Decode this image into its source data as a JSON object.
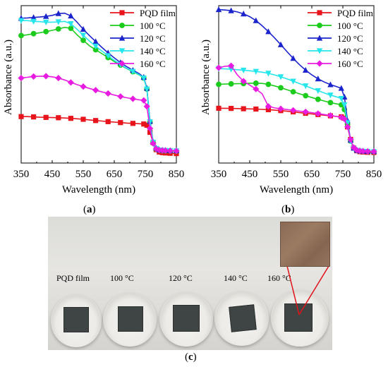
{
  "chart_data": [
    {
      "type": "line",
      "panel": "(a)",
      "xlabel": "Wavelength (nm)",
      "ylabel": "Absorbance (a.u.)",
      "xlim": [
        350,
        850
      ],
      "xticks": [
        "350",
        "450",
        "550",
        "650",
        "750",
        "850"
      ],
      "ylim": [
        0,
        1
      ],
      "legend_position": "top-right",
      "x": [
        350,
        370,
        390,
        410,
        430,
        450,
        470,
        490,
        510,
        530,
        550,
        570,
        590,
        610,
        630,
        650,
        670,
        690,
        710,
        730,
        745,
        755,
        765,
        775,
        785,
        795,
        805,
        815,
        830,
        850
      ],
      "series": [
        {
          "name": "PQD film",
          "color": "#e8141c",
          "marker": "square",
          "values": [
            0.295,
            0.295,
            0.293,
            0.291,
            0.29,
            0.289,
            0.288,
            0.286,
            0.284,
            0.281,
            0.278,
            0.274,
            0.27,
            0.267,
            0.263,
            0.26,
            0.257,
            0.254,
            0.252,
            0.25,
            0.248,
            0.24,
            0.195,
            0.13,
            0.085,
            0.07,
            0.066,
            0.064,
            0.062,
            0.06
          ]
        },
        {
          "name": "100 °C",
          "color": "#1ccc1c",
          "marker": "circle",
          "values": [
            0.81,
            0.815,
            0.822,
            0.828,
            0.835,
            0.843,
            0.852,
            0.862,
            0.856,
            0.815,
            0.78,
            0.745,
            0.72,
            0.695,
            0.67,
            0.645,
            0.622,
            0.6,
            0.58,
            0.56,
            0.54,
            0.47,
            0.26,
            0.13,
            0.09,
            0.08,
            0.078,
            0.077,
            0.076,
            0.075
          ]
        },
        {
          "name": "120 °C",
          "color": "#1c24cc",
          "marker": "triangle",
          "values": [
            0.92,
            0.922,
            0.925,
            0.928,
            0.932,
            0.938,
            0.95,
            0.952,
            0.935,
            0.895,
            0.85,
            0.81,
            0.772,
            0.735,
            0.7,
            0.668,
            0.638,
            0.612,
            0.59,
            0.568,
            0.545,
            0.475,
            0.265,
            0.135,
            0.095,
            0.084,
            0.082,
            0.081,
            0.08,
            0.079
          ]
        },
        {
          "name": "140 °C",
          "color": "#26e6ec",
          "marker": "triangle-down",
          "values": [
            0.905,
            0.905,
            0.9,
            0.898,
            0.895,
            0.895,
            0.897,
            0.9,
            0.885,
            0.85,
            0.812,
            0.775,
            0.742,
            0.712,
            0.682,
            0.652,
            0.626,
            0.602,
            0.582,
            0.562,
            0.54,
            0.47,
            0.262,
            0.132,
            0.092,
            0.082,
            0.08,
            0.079,
            0.078,
            0.077
          ]
        },
        {
          "name": "160 °C",
          "color": "#e81ce0",
          "marker": "diamond",
          "values": [
            0.54,
            0.545,
            0.55,
            0.551,
            0.552,
            0.548,
            0.54,
            0.528,
            0.512,
            0.498,
            0.486,
            0.474,
            0.463,
            0.452,
            0.442,
            0.432,
            0.423,
            0.415,
            0.408,
            0.402,
            0.398,
            0.36,
            0.22,
            0.125,
            0.09,
            0.082,
            0.08,
            0.079,
            0.078,
            0.077
          ]
        }
      ]
    },
    {
      "type": "line",
      "panel": "(b)",
      "xlabel": "Wavelength (nm)",
      "ylabel": "Absorbance (a.u.)",
      "xlim": [
        350,
        850
      ],
      "xticks": [
        "350",
        "450",
        "550",
        "650",
        "750",
        "850"
      ],
      "ylim": [
        0,
        1
      ],
      "legend_position": "top-right",
      "x": [
        350,
        370,
        390,
        410,
        430,
        450,
        470,
        490,
        510,
        530,
        550,
        570,
        590,
        610,
        630,
        650,
        670,
        690,
        710,
        730,
        745,
        755,
        765,
        775,
        785,
        795,
        805,
        815,
        830,
        850
      ],
      "series": [
        {
          "name": "PQD film",
          "color": "#e8141c",
          "marker": "square",
          "values": [
            0.348,
            0.348,
            0.347,
            0.346,
            0.345,
            0.344,
            0.343,
            0.341,
            0.339,
            0.336,
            0.333,
            0.329,
            0.325,
            0.32,
            0.316,
            0.312,
            0.308,
            0.304,
            0.3,
            0.296,
            0.294,
            0.285,
            0.23,
            0.15,
            0.095,
            0.078,
            0.072,
            0.07,
            0.068,
            0.067
          ]
        },
        {
          "name": "100 °C",
          "color": "#1ccc1c",
          "marker": "circle",
          "values": [
            0.5,
            0.502,
            0.503,
            0.504,
            0.505,
            0.507,
            0.507,
            0.506,
            0.5,
            0.49,
            0.478,
            0.466,
            0.453,
            0.44,
            0.428,
            0.416,
            0.405,
            0.394,
            0.384,
            0.376,
            0.37,
            0.34,
            0.245,
            0.14,
            0.095,
            0.08,
            0.076,
            0.074,
            0.073,
            0.072
          ]
        },
        {
          "name": "120 °C",
          "color": "#1c24cc",
          "marker": "triangle",
          "values": [
            0.975,
            0.972,
            0.968,
            0.96,
            0.948,
            0.93,
            0.905,
            0.872,
            0.835,
            0.795,
            0.752,
            0.708,
            0.665,
            0.625,
            0.59,
            0.56,
            0.535,
            0.515,
            0.498,
            0.485,
            0.475,
            0.42,
            0.27,
            0.145,
            0.095,
            0.082,
            0.078,
            0.076,
            0.075,
            0.074
          ]
        },
        {
          "name": "140 °C",
          "color": "#26e6ec",
          "marker": "triangle-down",
          "values": [
            0.6,
            0.598,
            0.596,
            0.593,
            0.59,
            0.586,
            0.582,
            0.577,
            0.57,
            0.56,
            0.548,
            0.535,
            0.52,
            0.505,
            0.49,
            0.475,
            0.46,
            0.445,
            0.432,
            0.42,
            0.41,
            0.37,
            0.255,
            0.14,
            0.092,
            0.08,
            0.076,
            0.074,
            0.073,
            0.072
          ]
        },
        {
          "name": "160 °C",
          "color": "#e81ce0",
          "marker": "diamond",
          "values": [
            0.605,
            0.615,
            0.618,
            0.56,
            0.52,
            0.495,
            0.47,
            0.44,
            0.36,
            0.35,
            0.345,
            0.34,
            0.335,
            0.33,
            0.325,
            0.32,
            0.314,
            0.308,
            0.302,
            0.296,
            0.29,
            0.28,
            0.23,
            0.15,
            0.098,
            0.082,
            0.077,
            0.075,
            0.074,
            0.073
          ]
        }
      ]
    }
  ],
  "captions": {
    "a": "a",
    "b": "b",
    "c": "c"
  },
  "photo": {
    "samples": [
      "PQD film",
      "100 °C",
      "120 °C",
      "140 °C",
      "160 °C"
    ]
  }
}
